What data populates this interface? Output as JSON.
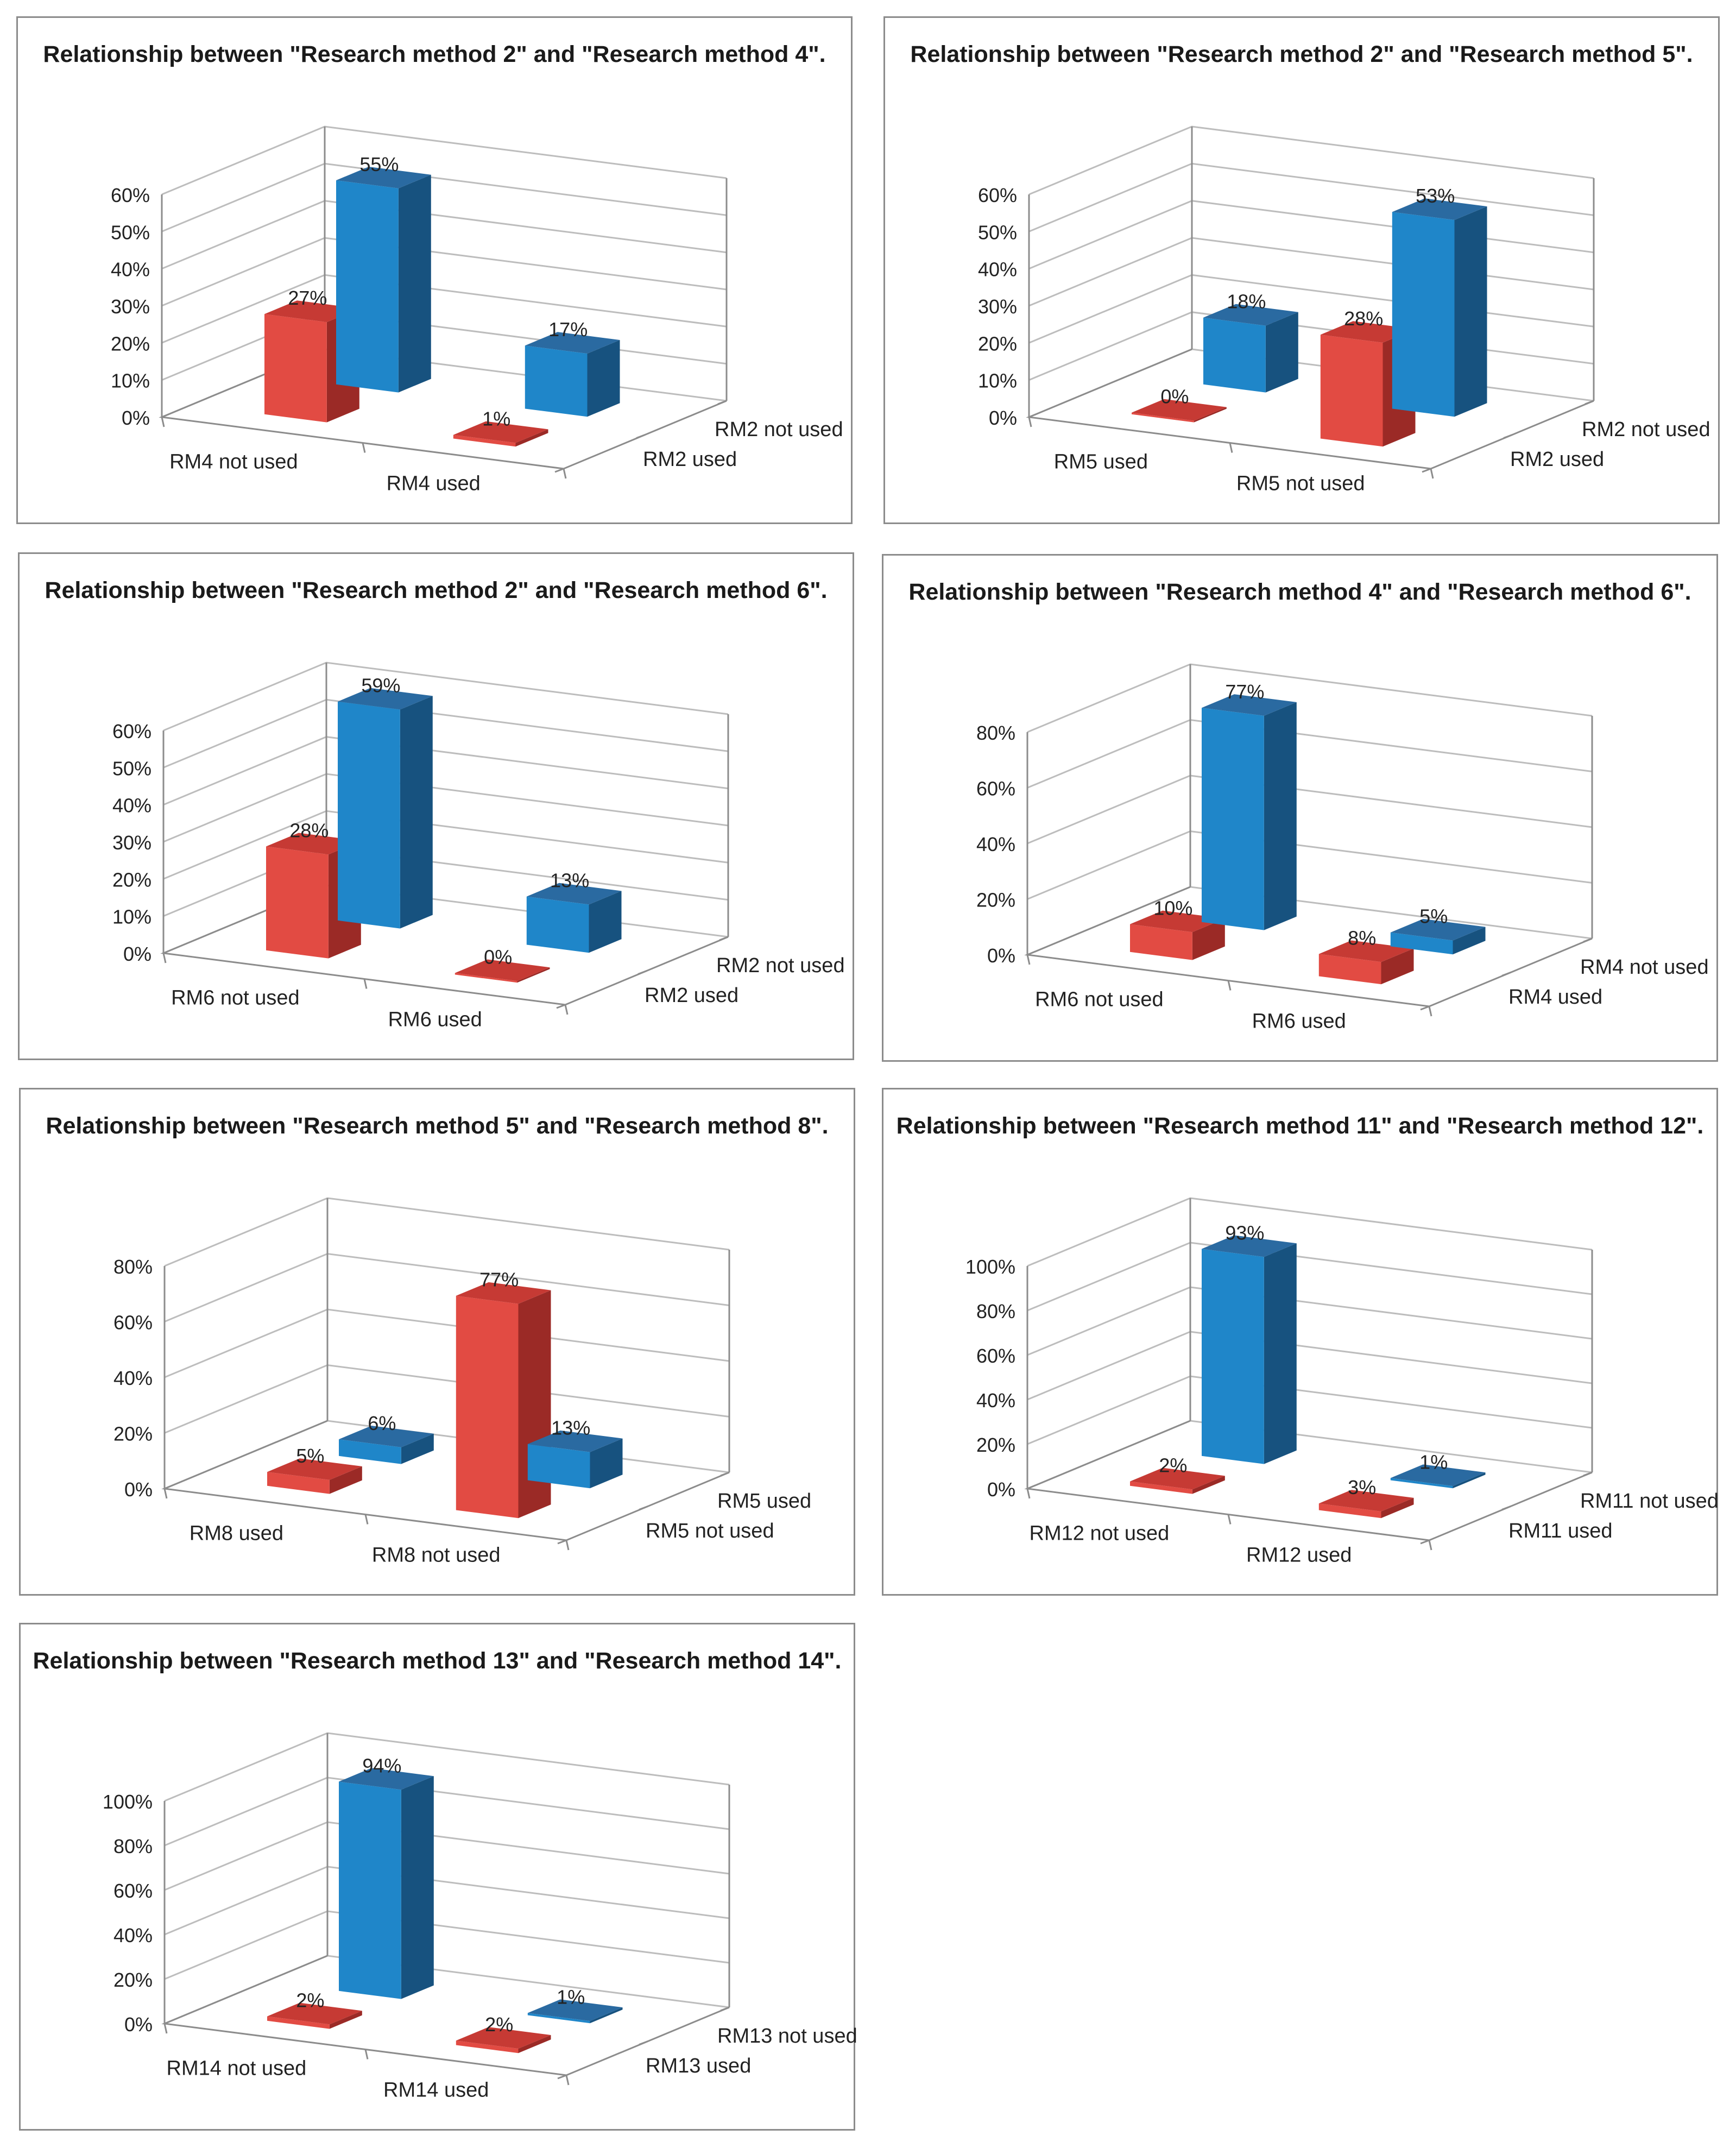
{
  "colors": {
    "blue_front": "#1f86c9",
    "blue_top": "#2a6aa1",
    "blue_side": "#17527f",
    "red_front": "#e24b43",
    "red_top": "#c63a34",
    "red_side": "#9b2a26",
    "grid": "#bdbdbd",
    "axis": "#8c8c8c",
    "text": "#222222"
  },
  "chart_data": [
    {
      "type": "bar3d",
      "title": "Relationship between \"Research method 2\" and \"Research method 4\".",
      "ticks": [
        "0%",
        "10%",
        "20%",
        "30%",
        "40%",
        "50%",
        "60%"
      ],
      "ymax": 60,
      "categories": [
        "RM4 not used",
        "RM4 used"
      ],
      "series": [
        {
          "name": "RM2 not used",
          "color": "blue",
          "values": [
            55,
            17
          ],
          "labels": [
            "55%",
            "17%"
          ]
        },
        {
          "name": "RM2 used",
          "color": "red",
          "values": [
            27,
            1
          ],
          "labels": [
            "27%",
            "1%"
          ]
        }
      ]
    },
    {
      "type": "bar3d",
      "title": "Relationship between \"Research method 2\" and \"Research method 5\".",
      "ticks": [
        "0%",
        "10%",
        "20%",
        "30%",
        "40%",
        "50%",
        "60%"
      ],
      "ymax": 60,
      "categories": [
        "RM5 used",
        "RM5 not used"
      ],
      "series": [
        {
          "name": "RM2 not used",
          "color": "blue",
          "values": [
            18,
            53
          ],
          "labels": [
            "18%",
            "53%"
          ]
        },
        {
          "name": "RM2 used",
          "color": "red",
          "values": [
            0,
            28
          ],
          "labels": [
            "0%",
            "28%"
          ]
        }
      ]
    },
    {
      "type": "bar3d",
      "title": "Relationship between \"Research method 2\" and \"Research method 6\".",
      "ticks": [
        "0%",
        "10%",
        "20%",
        "30%",
        "40%",
        "50%",
        "60%"
      ],
      "ymax": 60,
      "categories": [
        "RM6 not used",
        "RM6 used"
      ],
      "series": [
        {
          "name": "RM2 not used",
          "color": "blue",
          "values": [
            59,
            13
          ],
          "labels": [
            "59%",
            "13%"
          ]
        },
        {
          "name": "RM2 used",
          "color": "red",
          "values": [
            28,
            0
          ],
          "labels": [
            "28%",
            "0%"
          ]
        }
      ]
    },
    {
      "type": "bar3d",
      "title": "Relationship between \"Research method 4\" and \"Research method 6\".",
      "ticks": [
        "0%",
        "20%",
        "40%",
        "60%",
        "80%"
      ],
      "ymax": 80,
      "categories": [
        "RM6 not used",
        "RM6 used"
      ],
      "series": [
        {
          "name": "RM4 not used",
          "color": "blue",
          "values": [
            77,
            5
          ],
          "labels": [
            "77%",
            "5%"
          ]
        },
        {
          "name": "RM4 used",
          "color": "red",
          "values": [
            10,
            8
          ],
          "labels": [
            "10%",
            "8%"
          ]
        }
      ]
    },
    {
      "type": "bar3d",
      "title": "Relationship between \"Research method 5\" and \"Research method 8\".",
      "ticks": [
        "0%",
        "20%",
        "40%",
        "60%",
        "80%"
      ],
      "ymax": 80,
      "categories": [
        "RM8 used",
        "RM8 not used"
      ],
      "series": [
        {
          "name": "RM5 used",
          "color": "blue",
          "values": [
            6,
            13
          ],
          "labels": [
            "6%",
            "13%"
          ]
        },
        {
          "name": "RM5 not used",
          "color": "red",
          "values": [
            5,
            77
          ],
          "labels": [
            "5%",
            "77%"
          ]
        }
      ]
    },
    {
      "type": "bar3d",
      "title": "Relationship between \"Research method 11\" and \"Research method 12\".",
      "ticks": [
        "0%",
        "20%",
        "40%",
        "60%",
        "80%",
        "100%"
      ],
      "ymax": 100,
      "categories": [
        "RM12 not used",
        "RM12 used"
      ],
      "series": [
        {
          "name": "RM11 not used",
          "color": "blue",
          "values": [
            93,
            1
          ],
          "labels": [
            "93%",
            "1%"
          ]
        },
        {
          "name": "RM11 used",
          "color": "red",
          "values": [
            2,
            3
          ],
          "labels": [
            "2%",
            "3%"
          ]
        }
      ]
    },
    {
      "type": "bar3d",
      "title": "Relationship between \"Research method 13\" and \"Research method 14\".",
      "ticks": [
        "0%",
        "20%",
        "40%",
        "60%",
        "80%",
        "100%"
      ],
      "ymax": 100,
      "categories": [
        "RM14 not used",
        "RM14 used"
      ],
      "series": [
        {
          "name": "RM13 not used",
          "color": "blue",
          "values": [
            94,
            1
          ],
          "labels": [
            "94%",
            "1%"
          ]
        },
        {
          "name": "RM13 used",
          "color": "red",
          "values": [
            2,
            2
          ],
          "labels": [
            "2%",
            "2%"
          ]
        }
      ]
    }
  ]
}
